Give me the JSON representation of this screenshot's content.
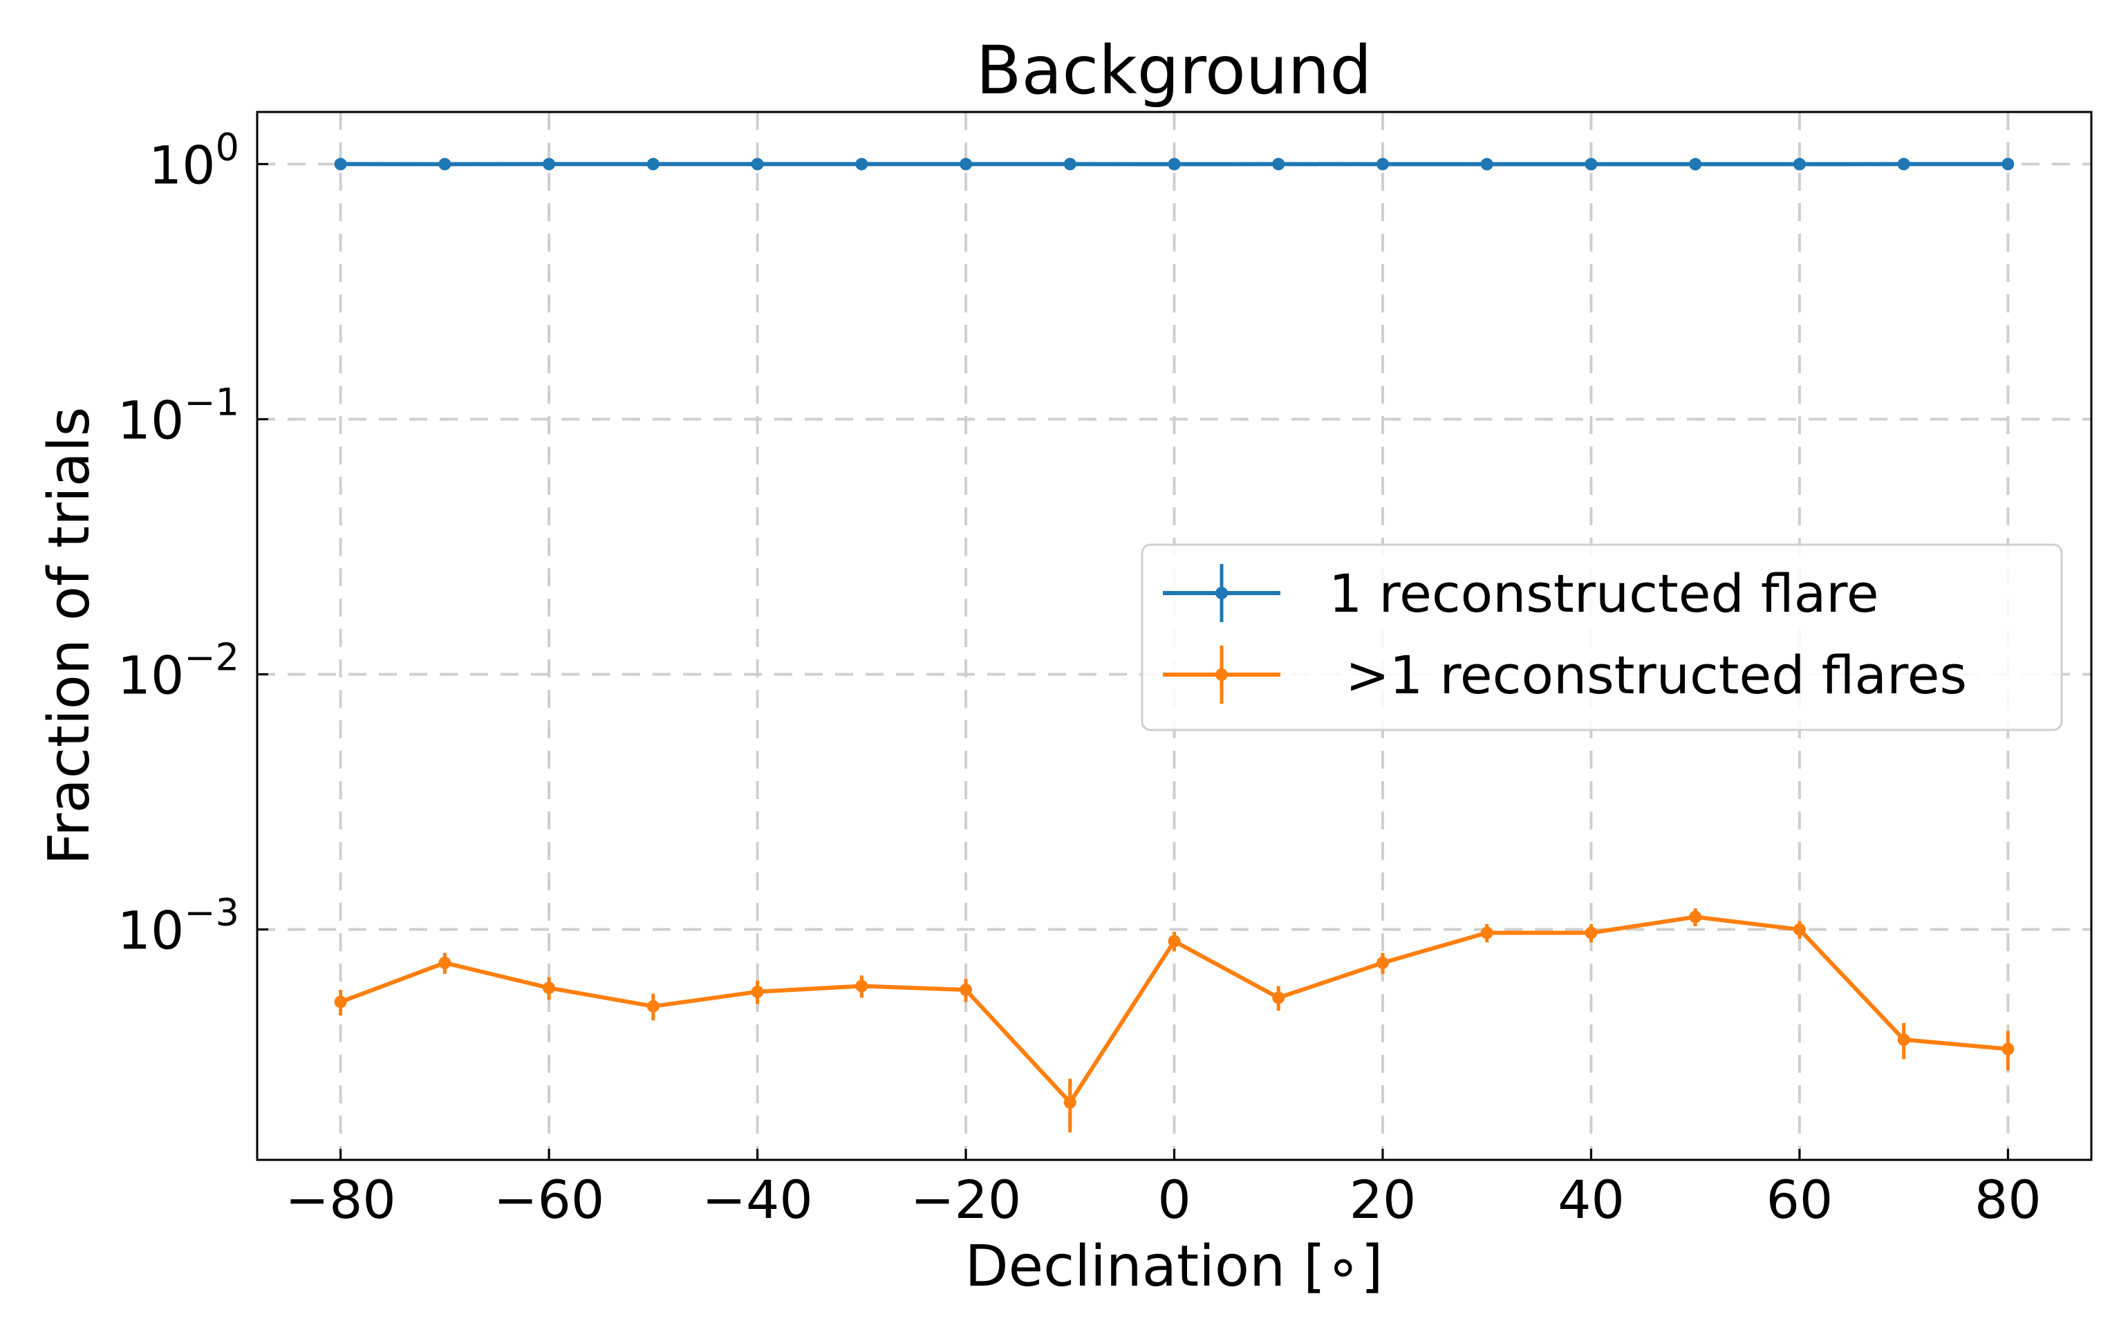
{
  "chart_data": {
    "type": "line",
    "title": "Background",
    "xlabel": "Declination [∘]",
    "ylabel": "Fraction of trials",
    "xlim": [
      -88,
      88
    ],
    "ylim": [
      0.000125,
      1.6
    ],
    "yscale": "log",
    "grid": true,
    "legend_position": "center-right",
    "x_ticks": [
      -80,
      -60,
      -40,
      -20,
      0,
      20,
      40,
      60,
      80
    ],
    "x_tick_labels": [
      "−80",
      "−60",
      "−40",
      "−20",
      "0",
      "20",
      "40",
      "60",
      "80"
    ],
    "y_ticks": [
      {
        "value": 1,
        "base": "10",
        "exp": "0"
      },
      {
        "value": 0.1,
        "base": "10",
        "exp": "−1"
      },
      {
        "value": 0.01,
        "base": "10",
        "exp": "−2"
      },
      {
        "value": 0.001,
        "base": "10",
        "exp": "−3"
      }
    ],
    "x": [
      -80,
      -70,
      -60,
      -50,
      -40,
      -30,
      -20,
      -10,
      0,
      10,
      20,
      30,
      40,
      50,
      60,
      70,
      80
    ],
    "series": [
      {
        "name": "1 reconstructed flare",
        "color": "#1f77b4",
        "values": [
          0.9995,
          0.9993,
          0.9994,
          0.9995,
          0.9994,
          0.9994,
          0.9994,
          0.9998,
          0.9991,
          0.9995,
          0.9993,
          0.999,
          0.999,
          0.9989,
          0.999,
          0.9996,
          0.9997
        ],
        "errors": [
          1e-05,
          1e-05,
          1e-05,
          1e-05,
          1e-05,
          1e-05,
          1e-05,
          1e-05,
          1e-05,
          1e-05,
          1e-05,
          1e-05,
          1e-05,
          1e-05,
          1e-05,
          1e-05,
          1e-05
        ]
      },
      {
        "name": " >1 reconstructed flares",
        "color": "#ff7f0e",
        "values": [
          0.00052,
          0.00074,
          0.00059,
          0.0005,
          0.00057,
          0.0006,
          0.00058,
          0.00021,
          0.0009,
          0.00054,
          0.00074,
          0.00097,
          0.00097,
          0.00112,
          0.001,
          0.00037,
          0.00034
        ],
        "errors": [
          6e-05,
          7e-05,
          6e-05,
          6e-05,
          6e-05,
          6e-05,
          6e-05,
          5e-05,
          8e-05,
          6e-05,
          7e-05,
          8e-05,
          8e-05,
          9e-05,
          8e-05,
          6e-05,
          6e-05
        ]
      }
    ]
  }
}
